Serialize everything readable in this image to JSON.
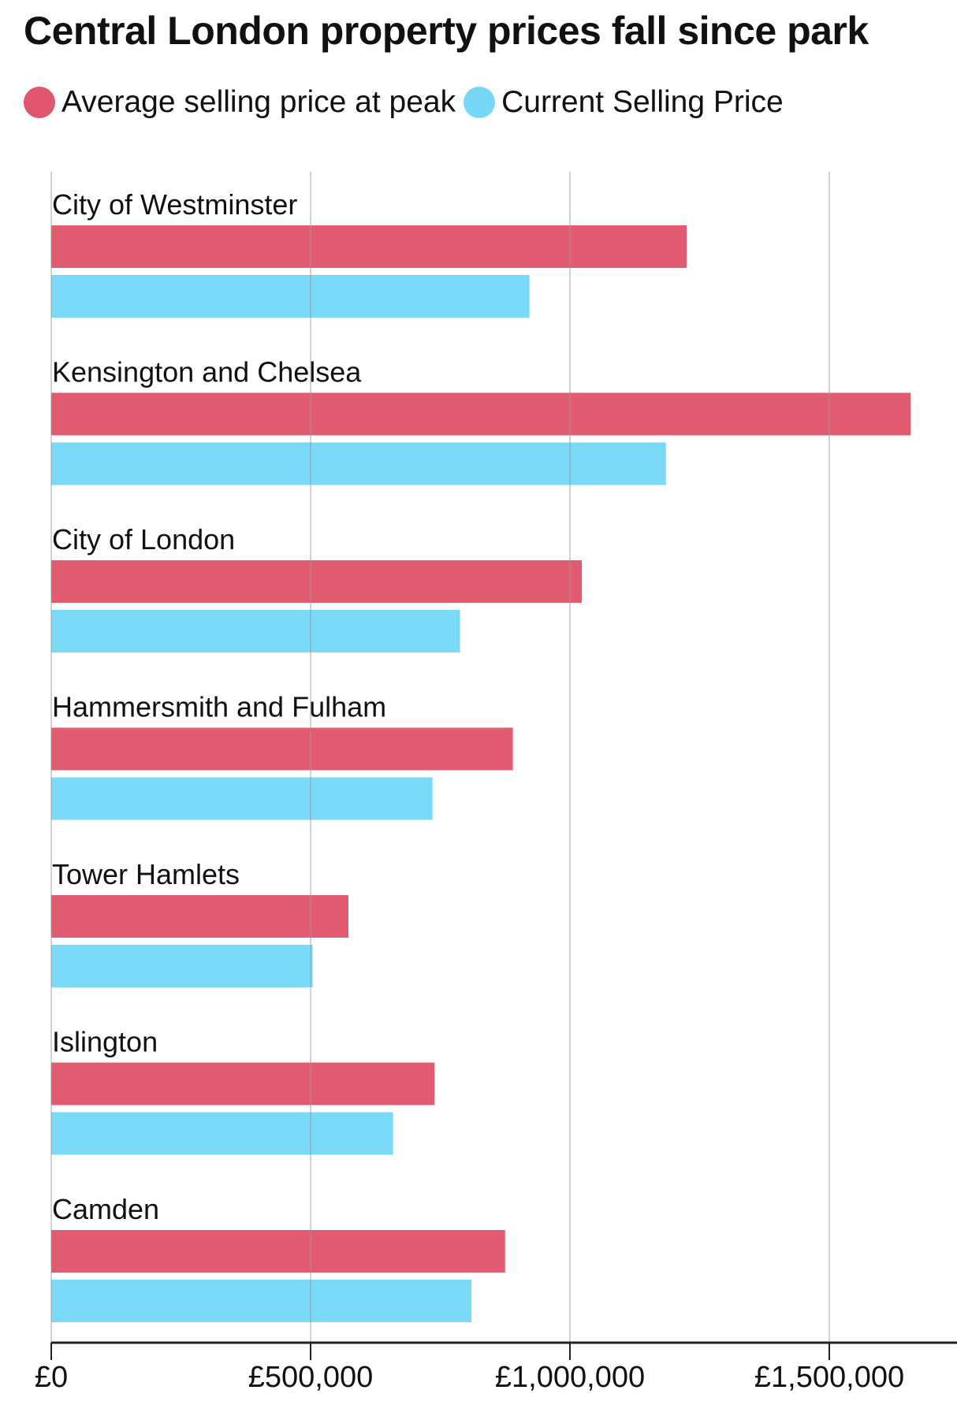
{
  "chart_data": {
    "type": "bar",
    "orientation": "horizontal",
    "title": "Central London property prices fall since park",
    "categories": [
      "City of Westminster",
      "Kensington and Chelsea",
      "City of London",
      "Hammersmith and Fulham",
      "Tower Hamlets",
      "Islington",
      "Camden"
    ],
    "series": [
      {
        "name": "Average selling price at peak",
        "color": "#e0566c",
        "values": [
          1225000,
          1657000,
          1023000,
          890000,
          573000,
          739000,
          875000
        ]
      },
      {
        "name": "Current Selling Price",
        "color": "#76d8f6",
        "values": [
          922000,
          1185000,
          788000,
          735000,
          504000,
          659000,
          810000
        ]
      }
    ],
    "xlim": [
      0,
      1750000
    ],
    "xticks": [
      0,
      500000,
      1000000,
      1500000
    ],
    "xtick_labels": [
      "£0",
      "£500,000",
      "£1,000,000",
      "£1,500,000"
    ],
    "grid": "vertical",
    "legend": "top-left"
  }
}
